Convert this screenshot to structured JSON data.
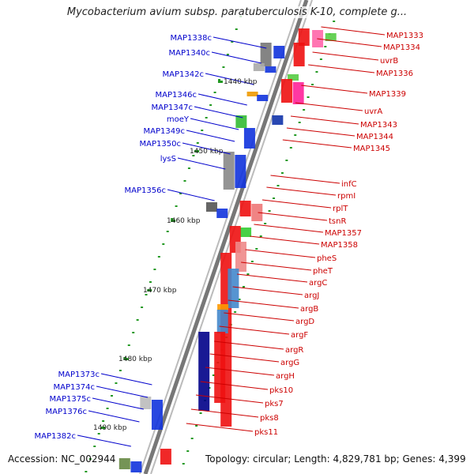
{
  "title": "Mycobacterium avium subsp. paratuberculosis K-10, complete g...",
  "footer": {
    "accession": "Accession: NC_002944",
    "topology": "Topology: circular; Length: 4,829,781 bp; Genes: 4,399"
  },
  "colors": {
    "forward_gene": "#ee1111",
    "reverse_gene": "#1133dd",
    "forward_label": "#cc0000",
    "reverse_label": "#0000cc",
    "backbone": "#888888",
    "ruler_dots": "#229922"
  },
  "ruler_ticks": [
    "1440 kbp",
    "1450 kbp",
    "1460 kbp",
    "1470 kbp",
    "1480 kbp",
    "1490 kbp"
  ],
  "genes_left": [
    "MAP1338c",
    "MAP1340c",
    "MAP1342c",
    "MAP1346c",
    "MAP1347c",
    "moeY",
    "MAP1349c",
    "MAP1350c",
    "lysS",
    "MAP1356c",
    "MAP1373c",
    "MAP1374c",
    "MAP1375c",
    "MAP1376c",
    "MAP1382c"
  ],
  "genes_right": [
    "MAP1333",
    "MAP1334",
    "uvrB",
    "MAP1336",
    "MAP1339",
    "uvrA",
    "MAP1343",
    "MAP1344",
    "MAP1345",
    "infC",
    "rpmI",
    "rplT",
    "tsnR",
    "MAP1357",
    "MAP1358",
    "pheS",
    "pheT",
    "argC",
    "argJ",
    "argB",
    "argD",
    "argF",
    "argR",
    "argG",
    "argH",
    "pks10",
    "pks7",
    "pks8",
    "pks11"
  ]
}
